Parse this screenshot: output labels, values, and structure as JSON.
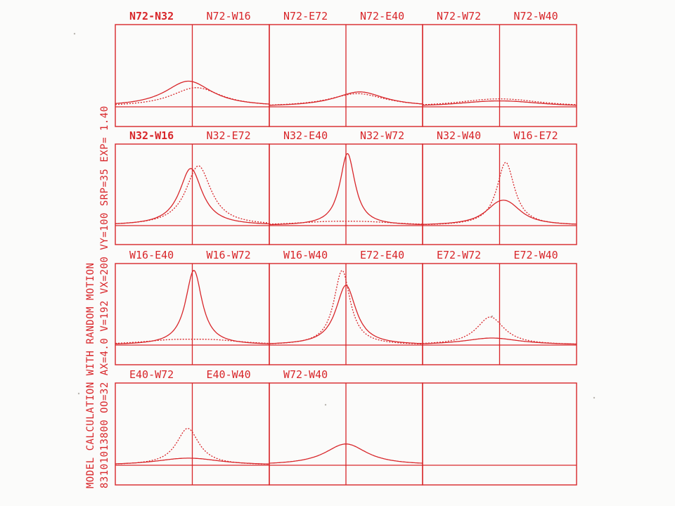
{
  "sidebar_text": {
    "line1": "MODEL CALCULATION WITH RANDOM MOTION",
    "line2": "83101013800 OO=32 AX=4.0 V=192 VX=200 VY=100 SRP=35 EXP= 1.40"
  },
  "colors": {
    "ink": "#d8262a",
    "paper": "#fbfbfa"
  },
  "chart_data": {
    "type": "line",
    "description_of_series": [
      "solid",
      "dotted"
    ],
    "x_range": [
      -1,
      1
    ],
    "ylim": [
      0,
      1
    ],
    "rows": [
      {
        "panels": [
          {
            "label_left": "N72-N32",
            "label_right": "N72-W16",
            "label_left_bold": true,
            "solid": {
              "center": -0.05,
              "peak": 0.24,
              "width": 0.36,
              "shape": "double",
              "split": 0.1
            },
            "dotted": {
              "center": 0.05,
              "peak": 0.18,
              "width": 0.38,
              "shape": "double",
              "split": 0.12
            }
          },
          {
            "label_left": "N72-E72",
            "label_right": "N72-E40",
            "solid": {
              "center": 0.18,
              "peak": 0.17,
              "width": 0.4,
              "shape": "single"
            },
            "dotted": {
              "center": 0.15,
              "peak": 0.15,
              "width": 0.45,
              "shape": "single"
            }
          },
          {
            "label_left": "N72-W72",
            "label_right": "N72-W40",
            "solid": {
              "center": 0.0,
              "peak": 0.06,
              "width": 0.55,
              "shape": "double",
              "split": 0.35
            },
            "dotted": {
              "center": 0.0,
              "peak": 0.08,
              "width": 0.55,
              "shape": "double",
              "split": 0.35
            }
          }
        ]
      },
      {
        "panels": [
          {
            "label_left": "N32-W16",
            "label_right": "N32-E72",
            "label_left_bold": true,
            "solid": {
              "center": -0.02,
              "peak": 0.65,
              "width": 0.18,
              "shape": "single"
            },
            "dotted": {
              "center": 0.08,
              "peak": 0.68,
              "width": 0.2,
              "shape": "single"
            }
          },
          {
            "label_left": "N32-E40",
            "label_right": "N32-W72",
            "solid": {
              "center": 0.02,
              "peak": 0.82,
              "width": 0.12,
              "shape": "single"
            },
            "dotted": {
              "center": 0.0,
              "peak": 0.05,
              "width": 0.55,
              "shape": "double",
              "split": 0.55
            }
          },
          {
            "label_left": "N32-W40",
            "label_right": "W16-E72",
            "solid": {
              "center": 0.05,
              "peak": 0.26,
              "width": 0.22,
              "shape": "double",
              "split": 0.15
            },
            "dotted": {
              "center": 0.08,
              "peak": 0.72,
              "width": 0.14,
              "shape": "single"
            }
          }
        ]
      },
      {
        "panels": [
          {
            "label_left": "W16-E40",
            "label_right": "W16-W72",
            "solid": {
              "center": 0.02,
              "peak": 0.85,
              "width": 0.13,
              "shape": "single"
            },
            "dotted": {
              "center": 0.0,
              "peak": 0.07,
              "width": 0.5,
              "shape": "double",
              "split": 0.55
            }
          },
          {
            "label_left": "W16-W40",
            "label_right": "E72-E40",
            "solid": {
              "center": 0.0,
              "peak": 0.68,
              "width": 0.16,
              "shape": "single"
            },
            "dotted": {
              "center": -0.05,
              "peak": 0.85,
              "width": 0.13,
              "shape": "single"
            }
          },
          {
            "label_left": "E72-W72",
            "label_right": "E72-W40",
            "solid": {
              "center": -0.1,
              "peak": 0.08,
              "width": 0.45,
              "shape": "single"
            },
            "dotted": {
              "center": -0.12,
              "peak": 0.32,
              "width": 0.22,
              "shape": "single"
            }
          }
        ]
      },
      {
        "panels": [
          {
            "label_left": "E40-W72",
            "label_right": "E40-W40",
            "solid": {
              "center": -0.05,
              "peak": 0.07,
              "width": 0.45,
              "shape": "double",
              "split": 0.25
            },
            "dotted": {
              "center": -0.06,
              "peak": 0.42,
              "width": 0.18,
              "shape": "single"
            }
          },
          {
            "label_left": "W72-W40",
            "label_right": "",
            "solid": {
              "center": 0.0,
              "peak": 0.2,
              "width": 0.32,
              "shape": "double",
              "split": 0.1
            },
            "dotted": null
          },
          null
        ]
      }
    ]
  }
}
